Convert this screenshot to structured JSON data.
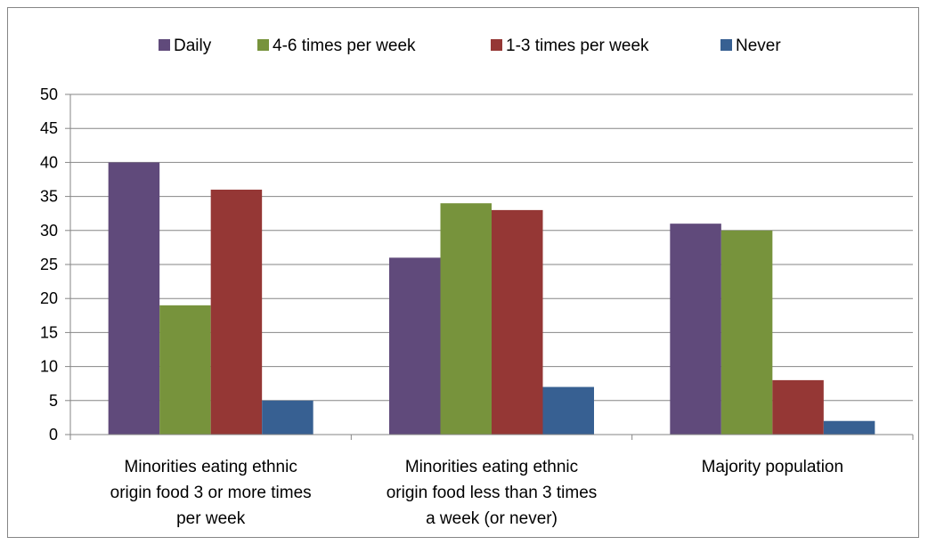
{
  "chart_data": {
    "type": "bar",
    "categories": [
      [
        "Minorities eating ethnic",
        "origin food 3 or more times",
        "per week"
      ],
      [
        "Minorities eating ethnic",
        "origin food less than 3 times",
        "a week (or never)"
      ],
      [
        "Majority population"
      ]
    ],
    "series": [
      {
        "name": "Daily",
        "color": "#604A7B",
        "values": [
          40,
          26,
          31
        ]
      },
      {
        "name": "4-6 times per week",
        "color": "#77933C",
        "values": [
          19,
          34,
          30
        ]
      },
      {
        "name": "1-3 times per week",
        "color": "#953735",
        "values": [
          36,
          33,
          8
        ]
      },
      {
        "name": "Never",
        "color": "#376092",
        "values": [
          5,
          7,
          2
        ]
      }
    ],
    "ylim": [
      0,
      50
    ],
    "yticks": [
      0,
      5,
      10,
      15,
      20,
      25,
      30,
      35,
      40,
      45,
      50
    ],
    "grid": true,
    "legend": "top"
  }
}
